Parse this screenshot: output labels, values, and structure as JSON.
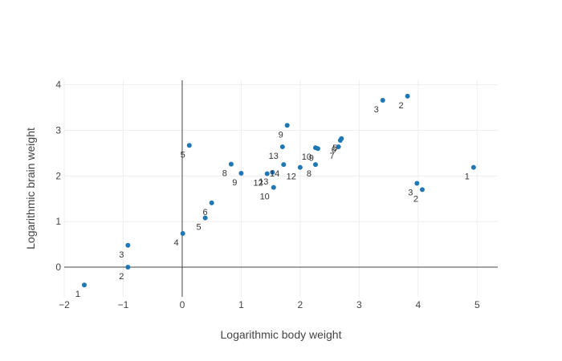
{
  "chart_data": {
    "type": "scatter",
    "xlabel": "Logarithmic body weight",
    "ylabel": "Logarithmic brain weight",
    "xlim": [
      -2,
      5.35
    ],
    "ylim": [
      -0.65,
      4.1
    ],
    "xticks": [
      "−2",
      "−1",
      "0",
      "1",
      "2",
      "3",
      "4",
      "5"
    ],
    "yticks": [
      "0",
      "1",
      "2",
      "3",
      "4"
    ],
    "grid": true,
    "marker_color": "#1f77b4",
    "points": [
      {
        "x": -1.66,
        "y": -0.39,
        "label": "1"
      },
      {
        "x": -0.92,
        "y": 0.0,
        "label": "2"
      },
      {
        "x": -0.92,
        "y": 0.48,
        "label": "3"
      },
      {
        "x": 0.01,
        "y": 0.74,
        "label": "4"
      },
      {
        "x": 0.39,
        "y": 1.08,
        "label": "5"
      },
      {
        "x": 0.5,
        "y": 1.41,
        "label": "6"
      },
      {
        "x": 0.12,
        "y": 2.67,
        "label": "5"
      },
      {
        "x": 0.83,
        "y": 2.26,
        "label": "8"
      },
      {
        "x": 1.0,
        "y": 2.06,
        "label": "9"
      },
      {
        "x": 1.44,
        "y": 2.05,
        "label": "12"
      },
      {
        "x": 1.53,
        "y": 2.08,
        "label": "13"
      },
      {
        "x": 1.55,
        "y": 1.75,
        "label": "10"
      },
      {
        "x": 1.72,
        "y": 2.25,
        "label": "14"
      },
      {
        "x": 1.7,
        "y": 2.64,
        "label": "13"
      },
      {
        "x": 1.78,
        "y": 3.11,
        "label": "9"
      },
      {
        "x": 2.0,
        "y": 2.19,
        "label": "12"
      },
      {
        "x": 2.26,
        "y": 2.62,
        "label": "10"
      },
      {
        "x": 2.3,
        "y": 2.6,
        "label": "9"
      },
      {
        "x": 2.26,
        "y": 2.25,
        "label": "8"
      },
      {
        "x": 2.65,
        "y": 2.64,
        "label": "7"
      },
      {
        "x": 2.68,
        "y": 2.78,
        "label": "6"
      },
      {
        "x": 2.7,
        "y": 2.82,
        "label": "5"
      },
      {
        "x": 3.4,
        "y": 3.66,
        "label": "3"
      },
      {
        "x": 3.82,
        "y": 3.75,
        "label": "2"
      },
      {
        "x": 3.98,
        "y": 1.84,
        "label": "3"
      },
      {
        "x": 4.07,
        "y": 1.7,
        "label": "2"
      },
      {
        "x": 4.94,
        "y": 2.19,
        "label": "1"
      }
    ]
  }
}
